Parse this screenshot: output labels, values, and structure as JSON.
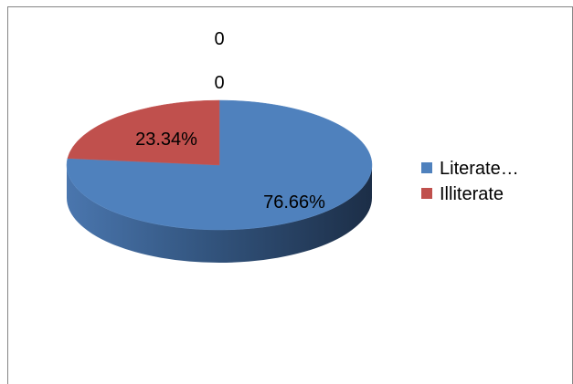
{
  "chart_data": {
    "type": "pie",
    "style": "3d",
    "labels": [
      "Literate…",
      "Illiterate"
    ],
    "values": [
      76.66,
      23.34
    ],
    "data_labels": [
      "76.66%",
      "23.34%"
    ],
    "colors": [
      "#4F81BD",
      "#C0504D"
    ],
    "extra_labels": [
      "0",
      "0"
    ],
    "legend_position": "right"
  }
}
